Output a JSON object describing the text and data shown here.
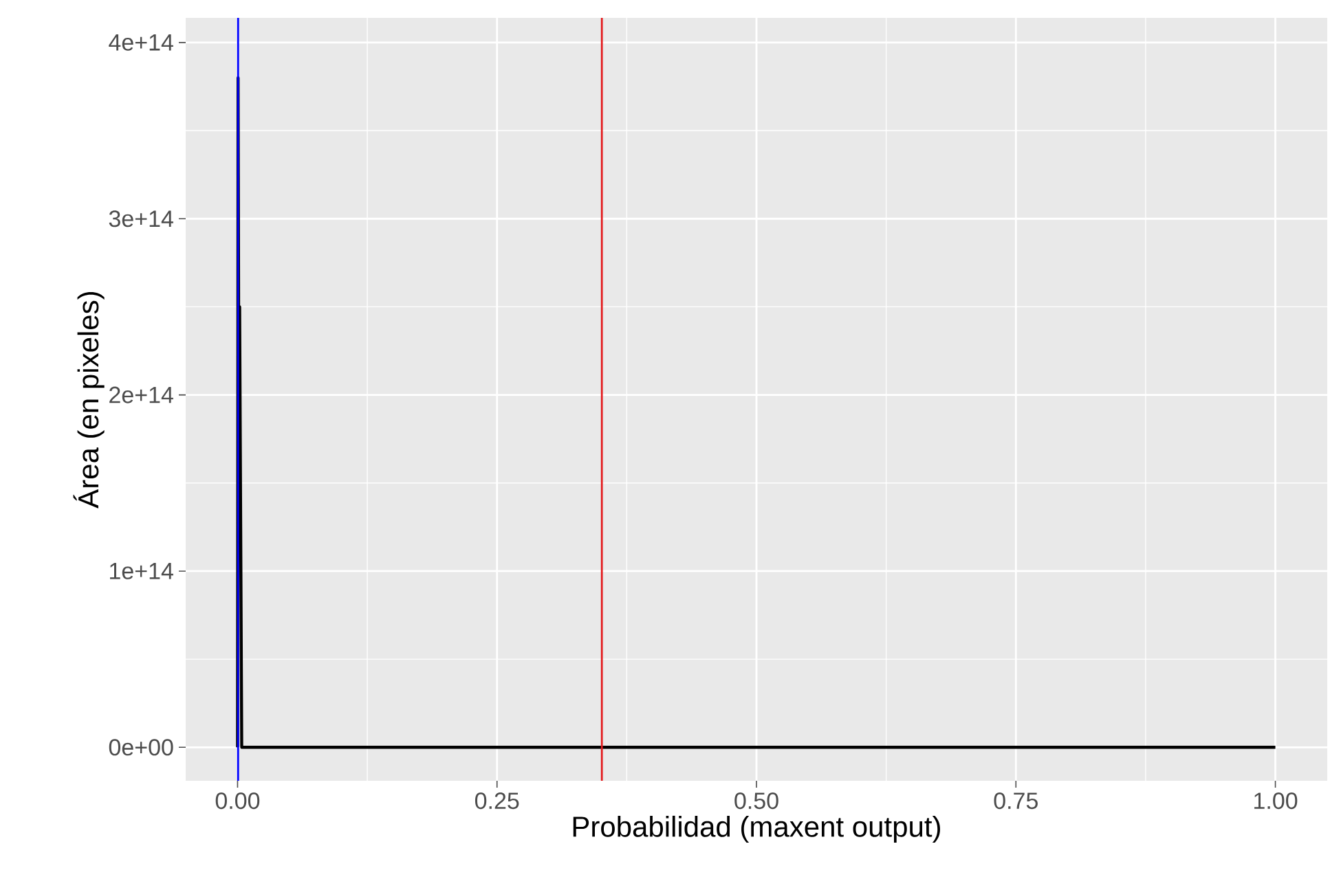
{
  "chart_data": {
    "type": "line",
    "xlabel": "Probabilidad (maxent output)",
    "ylabel": "Área (en pixeles)",
    "x": [
      0,
      0.0005,
      0.001,
      0.002,
      0.003,
      0.004,
      1
    ],
    "series": [
      {
        "color": "#000000",
        "values": [
          0,
          380000000000000.0,
          250000000000000.0,
          250000000000000.0,
          125000000000000.0,
          0,
          0
        ]
      }
    ],
    "xlim": [
      -0.05,
      1.05
    ],
    "ylim": [
      -19000000000000.0,
      414000000000000.0
    ],
    "xticks": [
      {
        "value": 0,
        "label": "0.00"
      },
      {
        "value": 0.25,
        "label": "0.25"
      },
      {
        "value": 0.5,
        "label": "0.50"
      },
      {
        "value": 0.75,
        "label": "0.75"
      },
      {
        "value": 1,
        "label": "1.00"
      }
    ],
    "yticks": [
      {
        "value": 0,
        "label": "0e+00"
      },
      {
        "value": 100000000000000.0,
        "label": "1e+14"
      },
      {
        "value": 200000000000000.0,
        "label": "2e+14"
      },
      {
        "value": 300000000000000.0,
        "label": "3e+14"
      },
      {
        "value": 400000000000000.0,
        "label": "4e+14"
      }
    ],
    "ref_lines": [
      {
        "axis": "x",
        "value": 0.0005,
        "color": "#0000ff"
      },
      {
        "axis": "x",
        "value": 0.351,
        "color": "#e31a1c"
      }
    ],
    "grid": true
  }
}
